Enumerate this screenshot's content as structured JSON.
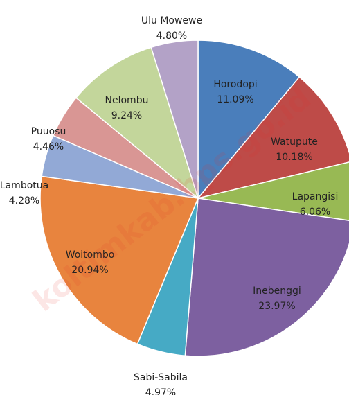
{
  "chart_data": {
    "type": "pie",
    "categories": [
      "Horodopi",
      "Watupute",
      "Lapangisi",
      "Inebenggi",
      "Sabi-Sabila",
      "Woitombo",
      "Lambotua",
      "Puuosu",
      "Nelombu",
      "Ulu Mowewe"
    ],
    "values": [
      11.09,
      10.18,
      6.06,
      23.97,
      4.97,
      20.94,
      4.28,
      4.46,
      9.24,
      4.8
    ],
    "value_labels": [
      "11.09%",
      "10.18%",
      "6.06%",
      "23.97%",
      "4.97%",
      "20.94%",
      "4.28%",
      "4.46%",
      "9.24%",
      "4.80%"
    ],
    "colors": [
      "#4a7ebb",
      "#be4b48",
      "#98b954",
      "#7d60a0",
      "#46aac5",
      "#e8843e",
      "#92a9d6",
      "#d99694",
      "#c3d69b",
      "#b3a2c7"
    ],
    "watermark": "koltimkab.bps.go.id"
  }
}
